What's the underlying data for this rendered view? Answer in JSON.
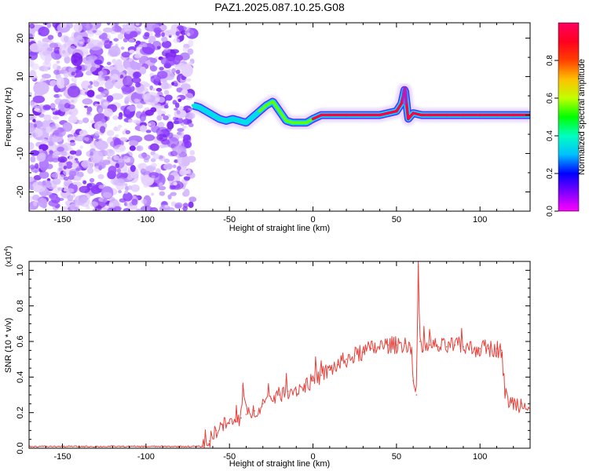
{
  "title": "PAZ1.2025.087.10.25.G08",
  "chart_data": [
    {
      "type": "heatmap",
      "xlabel": "Height of straight line (km)",
      "ylabel": "Frequency (Hz)",
      "xlim": [
        -170,
        130
      ],
      "ylim": [
        -25,
        24
      ],
      "xticks": [
        -150,
        -100,
        -50,
        0,
        50,
        100
      ],
      "yticks": [
        -20,
        -10,
        0,
        10,
        20
      ],
      "noise_region_x": [
        -170,
        -72
      ],
      "ridge": {
        "x": [
          -72,
          -68,
          -64,
          -60,
          -56,
          -52,
          -48,
          -44,
          -40,
          -36,
          -32,
          -28,
          -24,
          -20,
          -16,
          -12,
          -8,
          -4,
          0,
          5,
          10,
          20,
          30,
          40,
          45,
          50,
          53,
          55,
          57,
          60,
          65,
          70,
          80,
          90,
          100,
          110,
          120,
          130
        ],
        "y": [
          2.5,
          2.0,
          1.0,
          0.0,
          -1.0,
          -1.5,
          -1.0,
          -1.5,
          -2.0,
          -0.5,
          1.0,
          2.5,
          3.5,
          1.0,
          -1.5,
          -2.0,
          -2.0,
          -2.0,
          -1.0,
          0.0,
          0.0,
          0.0,
          0.0,
          0.0,
          0.5,
          1.0,
          3.0,
          7.0,
          -1.0,
          0.5,
          0.0,
          0.0,
          0.0,
          0.0,
          0.0,
          0.0,
          0.0,
          0.0
        ]
      },
      "colorbar": {
        "label": "Normalized spectral amplitude",
        "range": [
          0,
          1
        ],
        "ticks": [
          "0.0",
          "0.2",
          "0.4",
          "0.6",
          "0.8"
        ],
        "tick_values": [
          0,
          0.2,
          0.4,
          0.6,
          0.8
        ],
        "colors": [
          "#ff00ff",
          "#8000ff",
          "#0000ff",
          "#00c0ff",
          "#00ffc0",
          "#00ff00",
          "#c0ff00",
          "#ffc000",
          "#ff4000",
          "#ff0020",
          "#ff0060"
        ]
      }
    },
    {
      "type": "line",
      "xlabel": "Height of straight line (km)",
      "ylabel": "SNR (10 * v/v)",
      "scale_label_prefix": "(x10",
      "scale_label_exp": "4",
      "scale_label_suffix": ")",
      "xlim": [
        -170,
        130
      ],
      "ylim": [
        0,
        1.05
      ],
      "xticks": [
        -150,
        -100,
        -50,
        0,
        50,
        100
      ],
      "yticks": [
        0.0,
        0.2,
        0.4,
        0.6,
        0.8,
        1.0
      ],
      "ytick_labels": [
        "0.0",
        "0.2",
        "0.4",
        "0.6",
        "0.8",
        "1.0"
      ],
      "color": "#e8403a",
      "series": [
        {
          "x": [
            -170,
            -150,
            -120,
            -100,
            -80,
            -66,
            -62,
            -58,
            -54,
            -50,
            -46,
            -43,
            -42,
            -40,
            -35,
            -30,
            -25,
            -20,
            -15,
            -10,
            -5,
            0,
            5,
            10,
            15,
            20,
            25,
            30,
            35,
            40,
            45,
            50,
            55,
            58,
            60,
            62,
            63,
            64,
            66,
            70,
            75,
            80,
            85,
            90,
            95,
            100,
            105,
            110,
            113,
            115,
            118,
            120,
            125,
            130
          ],
          "y": [
            0.01,
            0.01,
            0.01,
            0.01,
            0.01,
            0.01,
            0.04,
            0.1,
            0.13,
            0.14,
            0.15,
            0.17,
            0.35,
            0.19,
            0.21,
            0.25,
            0.28,
            0.3,
            0.32,
            0.33,
            0.35,
            0.38,
            0.41,
            0.44,
            0.47,
            0.5,
            0.52,
            0.54,
            0.56,
            0.57,
            0.58,
            0.58,
            0.59,
            0.58,
            0.38,
            0.3,
            1.02,
            0.6,
            0.55,
            0.58,
            0.57,
            0.57,
            0.58,
            0.57,
            0.56,
            0.56,
            0.56,
            0.56,
            0.55,
            0.3,
            0.26,
            0.25,
            0.25,
            0.26
          ]
        }
      ]
    }
  ]
}
